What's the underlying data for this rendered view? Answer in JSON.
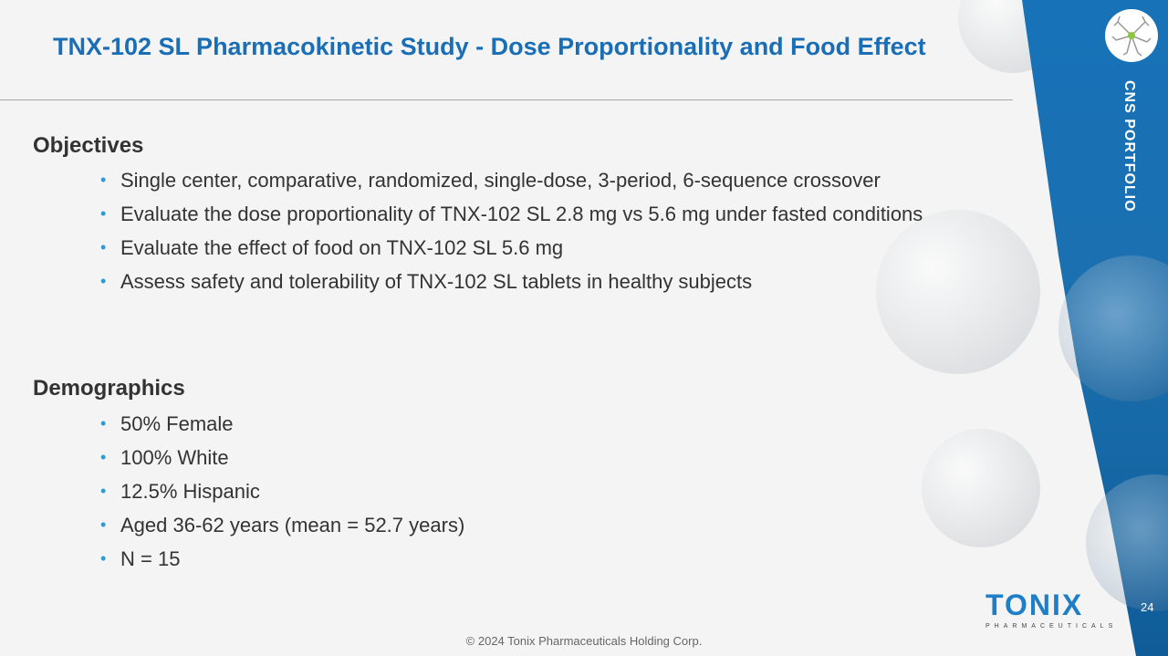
{
  "slide": {
    "title": "TNX-102 SL Pharmacokinetic Study - Dose Proportionality and Food Effect",
    "side_label": "CNS PORTFOLIO",
    "page_number": "24",
    "footer": "© 2024 Tonix Pharmaceuticals Holding Corp.",
    "logo": {
      "word": "TONIX",
      "sub": "PHARMACEUTICALS"
    },
    "accent_color": "#1a6eb5",
    "bullet_color": "#2a9bd8"
  },
  "objectives": {
    "heading": "Objectives",
    "items": [
      "Single center, comparative, randomized, single-dose, 3-period, 6-sequence crossover",
      "Evaluate the dose proportionality of TNX-102 SL 2.8 mg vs 5.6 mg under fasted conditions",
      "Evaluate the effect of food on TNX-102 SL 5.6 mg",
      "Assess safety and tolerability of TNX-102 SL tablets in healthy subjects"
    ]
  },
  "demographics": {
    "heading": "Demographics",
    "items": [
      "50% Female",
      "100% White",
      "12.5% Hispanic",
      "Aged 36-62 years (mean = 52.7 years)",
      "N = 15"
    ]
  }
}
